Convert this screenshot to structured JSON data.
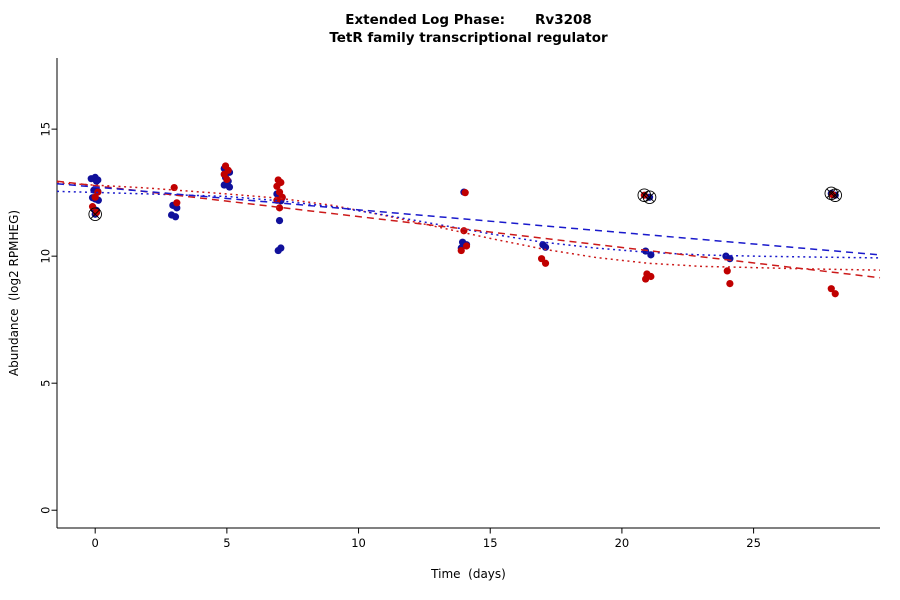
{
  "title": {
    "line1_left": "Extended Log Phase:",
    "line1_right": "Rv3208",
    "line2": "TetR family transcriptional regulator"
  },
  "chart_data": {
    "type": "scatter",
    "title": "Extended Log Phase:   Rv3208",
    "subtitle": "TetR family transcriptional regulator",
    "xlabel": "Time  (days)",
    "ylabel": "Abundance  (log2 RPMHEG)",
    "xlim": [
      -1.45,
      29.8
    ],
    "ylim": [
      -0.7,
      17.8
    ],
    "xticks": [
      0,
      5,
      10,
      15,
      20,
      25
    ],
    "yticks": [
      0,
      5,
      10,
      15
    ],
    "grid": false,
    "legend": "none",
    "series": [
      {
        "name": "blue-group",
        "color": "#10109b",
        "points": [
          [
            -0.15,
            13.05
          ],
          [
            0,
            13.1
          ],
          [
            0.1,
            13.0
          ],
          [
            0.05,
            12.95
          ],
          [
            -0.05,
            12.6
          ],
          [
            0.1,
            12.55
          ],
          [
            -0.1,
            12.3
          ],
          [
            0,
            12.25
          ],
          [
            0.12,
            12.2
          ],
          [
            -0.05,
            11.85
          ],
          [
            0.05,
            11.8
          ],
          [
            0,
            11.65
          ],
          [
            2.95,
            12.0
          ],
          [
            3.1,
            11.9
          ],
          [
            2.9,
            11.62
          ],
          [
            3.05,
            11.55
          ],
          [
            4.9,
            13.45
          ],
          [
            5.0,
            13.35
          ],
          [
            5.1,
            13.3
          ],
          [
            4.95,
            13.1
          ],
          [
            5.05,
            12.95
          ],
          [
            4.9,
            12.8
          ],
          [
            5.1,
            12.72
          ],
          [
            6.9,
            12.45
          ],
          [
            7.0,
            12.38
          ],
          [
            7.1,
            12.3
          ],
          [
            6.95,
            12.25
          ],
          [
            7.05,
            12.18
          ],
          [
            7.0,
            11.4
          ],
          [
            7.05,
            10.32
          ],
          [
            6.95,
            10.22
          ],
          [
            14.0,
            12.52
          ],
          [
            13.95,
            10.55
          ],
          [
            14.1,
            10.45
          ],
          [
            13.9,
            10.32
          ],
          [
            17.0,
            10.45
          ],
          [
            17.1,
            10.35
          ],
          [
            21.05,
            12.32
          ],
          [
            20.9,
            10.2
          ],
          [
            21.1,
            10.05
          ],
          [
            23.95,
            10.0
          ],
          [
            24.1,
            9.9
          ],
          [
            27.95,
            12.47
          ],
          [
            28.1,
            12.4
          ]
        ]
      },
      {
        "name": "red-group",
        "color": "#c00000",
        "points": [
          [
            0.1,
            12.52
          ],
          [
            0.0,
            12.32
          ],
          [
            -0.1,
            11.95
          ],
          [
            0.05,
            11.72
          ],
          [
            3.0,
            12.7
          ],
          [
            3.1,
            12.1
          ],
          [
            4.95,
            13.55
          ],
          [
            5.05,
            13.38
          ],
          [
            4.9,
            13.22
          ],
          [
            5.0,
            13.02
          ],
          [
            6.95,
            13.0
          ],
          [
            7.05,
            12.9
          ],
          [
            6.9,
            12.75
          ],
          [
            7.0,
            12.52
          ],
          [
            7.1,
            12.32
          ],
          [
            6.9,
            12.2
          ],
          [
            7.0,
            11.9
          ],
          [
            14.05,
            12.5
          ],
          [
            14.0,
            11.0
          ],
          [
            14.1,
            10.4
          ],
          [
            13.9,
            10.22
          ],
          [
            16.95,
            9.9
          ],
          [
            17.1,
            9.72
          ],
          [
            20.85,
            12.4
          ],
          [
            20.95,
            9.3
          ],
          [
            21.1,
            9.2
          ],
          [
            20.9,
            9.1
          ],
          [
            24.0,
            9.42
          ],
          [
            24.1,
            8.92
          ],
          [
            28.0,
            12.42
          ],
          [
            27.95,
            8.72
          ],
          [
            28.1,
            8.52
          ]
        ]
      }
    ],
    "flagged_points": {
      "marker": "circle-cross",
      "color": "#000000",
      "points": [
        [
          0,
          11.65
        ],
        [
          20.85,
          12.4
        ],
        [
          21.05,
          12.32
        ],
        [
          27.95,
          12.47
        ],
        [
          28.1,
          12.4
        ]
      ]
    },
    "trend_lines": [
      {
        "name": "red-loess",
        "color": "#cc1a1a",
        "style": "dotted",
        "points": [
          [
            -1.45,
            12.88
          ],
          [
            2,
            12.68
          ],
          [
            5,
            12.45
          ],
          [
            7,
            12.28
          ],
          [
            9,
            12.0
          ],
          [
            11,
            11.6
          ],
          [
            13,
            11.15
          ],
          [
            15,
            10.7
          ],
          [
            17,
            10.28
          ],
          [
            19,
            9.95
          ],
          [
            21,
            9.72
          ],
          [
            23,
            9.6
          ],
          [
            25,
            9.55
          ],
          [
            27,
            9.5
          ],
          [
            29.8,
            9.45
          ]
        ]
      },
      {
        "name": "blue-loess",
        "color": "#1a1acc",
        "style": "dotted",
        "points": [
          [
            -1.45,
            12.55
          ],
          [
            2,
            12.45
          ],
          [
            5,
            12.35
          ],
          [
            7,
            12.18
          ],
          [
            9,
            11.95
          ],
          [
            11,
            11.62
          ],
          [
            13,
            11.25
          ],
          [
            15,
            10.88
          ],
          [
            17,
            10.55
          ],
          [
            19,
            10.32
          ],
          [
            21,
            10.15
          ],
          [
            23,
            10.05
          ],
          [
            25,
            10.0
          ],
          [
            27,
            9.97
          ],
          [
            29.8,
            9.93
          ]
        ]
      },
      {
        "name": "red-linear",
        "color": "#cc1a1a",
        "style": "dashed",
        "points": [
          [
            -1.45,
            12.95
          ],
          [
            29.8,
            9.15
          ]
        ]
      },
      {
        "name": "blue-linear",
        "color": "#1a1acc",
        "style": "dashed",
        "points": [
          [
            -1.45,
            12.85
          ],
          [
            29.8,
            10.05
          ]
        ]
      }
    ]
  }
}
